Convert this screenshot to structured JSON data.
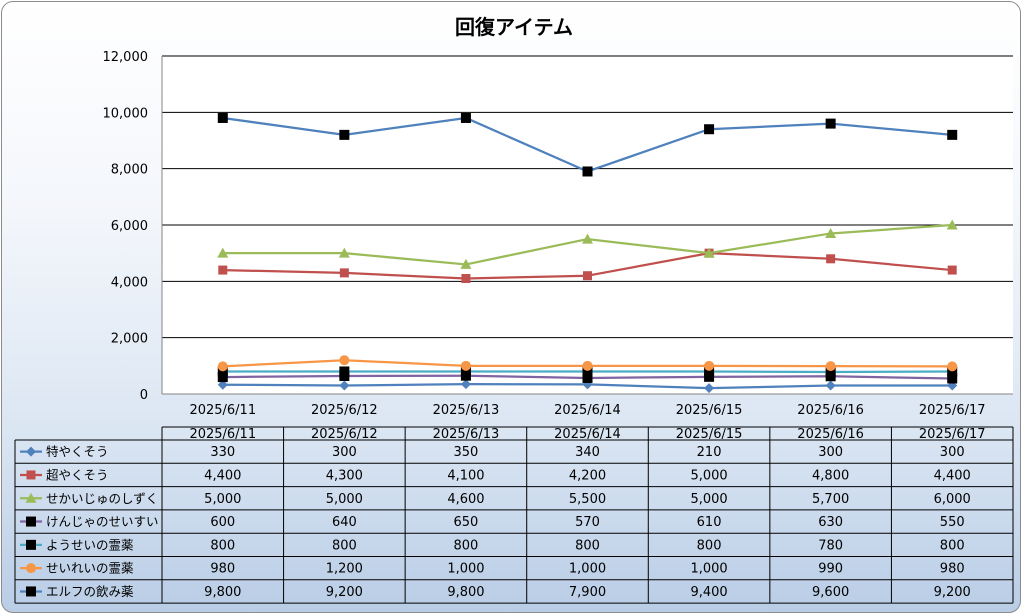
{
  "chart_data": {
    "type": "line",
    "title": "回復アイテム",
    "x": [
      "2025/6/11",
      "2025/6/12",
      "2025/6/13",
      "2025/6/14",
      "2025/6/15",
      "2025/6/16",
      "2025/6/17"
    ],
    "ylim": [
      0,
      12000
    ],
    "yticks": [
      0,
      2000,
      4000,
      6000,
      8000,
      10000,
      12000
    ],
    "ytick_labels": [
      "0",
      "2,000",
      "4,000",
      "6,000",
      "8,000",
      "10,000",
      "12,000"
    ],
    "grid": true,
    "legend": "data-table",
    "series": [
      {
        "name": "特やくそう",
        "color": "#4f81bd",
        "marker": "diamond",
        "values": [
          330,
          300,
          350,
          340,
          210,
          300,
          300
        ],
        "labels": [
          "330",
          "300",
          "350",
          "340",
          "210",
          "300",
          "300"
        ]
      },
      {
        "name": "超やくそう",
        "color": "#c0504d",
        "marker": "square",
        "values": [
          4400,
          4300,
          4100,
          4200,
          5000,
          4800,
          4400
        ],
        "labels": [
          "4,400",
          "4,300",
          "4,100",
          "4,200",
          "5,000",
          "4,800",
          "4,400"
        ]
      },
      {
        "name": "せかいじゅのしずく",
        "color": "#9bbb59",
        "marker": "triangle",
        "values": [
          5000,
          5000,
          4600,
          5500,
          5000,
          5700,
          6000
        ],
        "labels": [
          "5,000",
          "5,000",
          "4,600",
          "5,500",
          "5,000",
          "5,700",
          "6,000"
        ]
      },
      {
        "name": "けんじゃのせいすい",
        "color": "#8064a2",
        "marker": "square-black",
        "values": [
          600,
          640,
          650,
          570,
          610,
          630,
          550
        ],
        "labels": [
          "600",
          "640",
          "650",
          "570",
          "610",
          "630",
          "550"
        ]
      },
      {
        "name": "ようせいの霊薬",
        "color": "#4bacc6",
        "marker": "square-black",
        "values": [
          800,
          800,
          800,
          800,
          800,
          780,
          800
        ],
        "labels": [
          "800",
          "800",
          "800",
          "800",
          "800",
          "780",
          "800"
        ]
      },
      {
        "name": "せいれいの霊薬",
        "color": "#f79646",
        "marker": "circle",
        "values": [
          980,
          1200,
          1000,
          1000,
          1000,
          990,
          980
        ],
        "labels": [
          "980",
          "1,200",
          "1,000",
          "1,000",
          "1,000",
          "990",
          "980"
        ]
      },
      {
        "name": "エルフの飲み薬",
        "color": "#4f81bd",
        "marker": "square-black",
        "values": [
          9800,
          9200,
          9800,
          7900,
          9400,
          9600,
          9200
        ],
        "labels": [
          "9,800",
          "9,200",
          "9,800",
          "7,900",
          "9,400",
          "9,600",
          "9,200"
        ]
      }
    ]
  }
}
